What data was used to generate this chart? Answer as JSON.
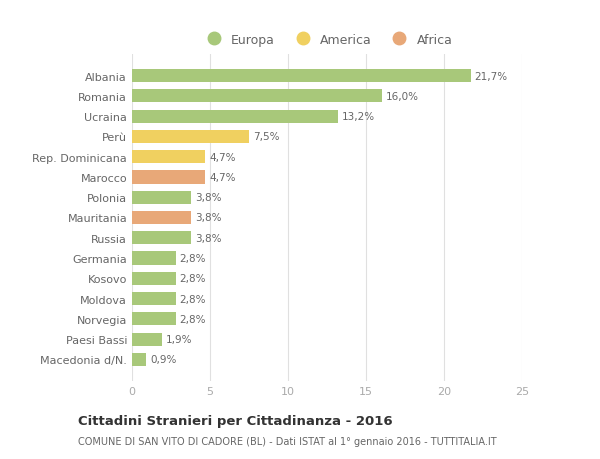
{
  "countries": [
    "Albania",
    "Romania",
    "Ucraina",
    "Perù",
    "Rep. Dominicana",
    "Marocco",
    "Polonia",
    "Mauritania",
    "Russia",
    "Germania",
    "Kosovo",
    "Moldova",
    "Norvegia",
    "Paesi Bassi",
    "Macedonia d/N."
  ],
  "values": [
    21.7,
    16.0,
    13.2,
    7.5,
    4.7,
    4.7,
    3.8,
    3.8,
    3.8,
    2.8,
    2.8,
    2.8,
    2.8,
    1.9,
    0.9
  ],
  "continents": [
    "Europa",
    "Europa",
    "Europa",
    "America",
    "America",
    "Africa",
    "Europa",
    "Africa",
    "Europa",
    "Europa",
    "Europa",
    "Europa",
    "Europa",
    "Europa",
    "Europa"
  ],
  "colors": {
    "Europa": "#a8c87a",
    "America": "#f0d060",
    "Africa": "#e8a878"
  },
  "legend_colors": {
    "Europa": "#a8c87a",
    "America": "#f0d060",
    "Africa": "#e8a878"
  },
  "title": "Cittadini Stranieri per Cittadinanza - 2016",
  "subtitle": "COMUNE DI SAN VITO DI CADORE (BL) - Dati ISTAT al 1° gennaio 2016 - TUTTITALIA.IT",
  "xlim": [
    0,
    25
  ],
  "xticks": [
    0,
    5,
    10,
    15,
    20,
    25
  ],
  "background_color": "#ffffff",
  "grid_color": "#e0e0e0",
  "bar_height": 0.65
}
